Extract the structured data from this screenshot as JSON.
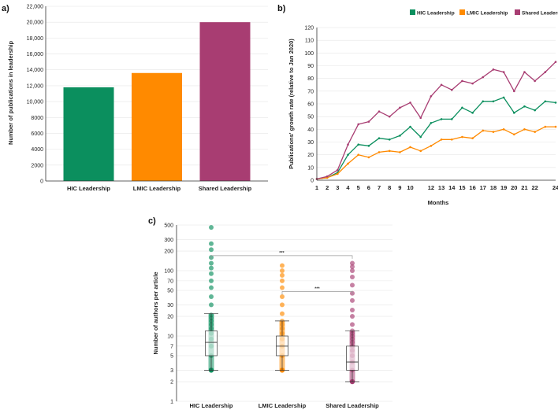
{
  "colors": {
    "hic": "#0b8f5e",
    "lmic": "#ff8a00",
    "shared": "#a83d72"
  },
  "chart_data": [
    {
      "panel": "a)",
      "type": "bar",
      "categories": [
        "HIC Leadership",
        "LMIC Leadership",
        "Shared Leadership"
      ],
      "values": [
        11800,
        13600,
        20000
      ],
      "xlabel": "",
      "ylabel": "Number of publications in leadership",
      "ylim": [
        0,
        22000
      ],
      "yticks": [
        0,
        2000,
        4000,
        6000,
        8000,
        10000,
        12000,
        14000,
        16000,
        18000,
        20000,
        22000
      ],
      "ytick_labels": [
        "0",
        "2000",
        "4000",
        "6000",
        "8000",
        "10,000",
        "12,000",
        "14,000",
        "16,000",
        "18,000",
        "20,000",
        "22,000"
      ],
      "grid": true
    },
    {
      "panel": "b)",
      "type": "line",
      "title": "",
      "xlabel": "Months",
      "ylabel": "Publications' growth rate (relative to Jan 2020)",
      "ylim": [
        0,
        120
      ],
      "xlim": [
        1,
        24
      ],
      "xticks": [
        "1",
        "2",
        "3",
        "4",
        "5",
        "6",
        "7",
        "8",
        "9",
        "10",
        "12",
        "13",
        "14",
        "15",
        "16",
        "17",
        "18",
        "19",
        "20",
        "21",
        "22",
        "24"
      ],
      "yticks": [
        0,
        10,
        20,
        30,
        40,
        50,
        60,
        70,
        80,
        90,
        100,
        110,
        120
      ],
      "legend_position": "top-right",
      "x": [
        1,
        2,
        3,
        4,
        5,
        6,
        7,
        8,
        9,
        10,
        11,
        12,
        13,
        14,
        15,
        16,
        17,
        18,
        19,
        20,
        21,
        22,
        23,
        24
      ],
      "series": [
        {
          "name": "HIC Leadership",
          "key": "hic",
          "values": [
            1,
            2,
            6,
            20,
            28,
            27,
            33,
            32,
            35,
            42,
            34,
            45,
            48,
            48,
            57,
            53,
            62,
            62,
            65,
            53,
            58,
            55,
            62,
            61
          ]
        },
        {
          "name": "LMIC Leadership",
          "key": "lmic",
          "values": [
            1,
            2,
            5,
            13,
            20,
            18,
            22,
            23,
            22,
            26,
            23,
            27,
            32,
            32,
            34,
            33,
            39,
            38,
            40,
            36,
            40,
            38,
            42,
            42
          ]
        },
        {
          "name": "Shared Leadership",
          "key": "shared",
          "values": [
            1,
            3,
            8,
            28,
            44,
            46,
            54,
            50,
            57,
            61,
            49,
            66,
            75,
            71,
            78,
            76,
            81,
            87,
            85,
            70,
            85,
            78,
            85,
            93
          ]
        }
      ],
      "grid": true
    },
    {
      "panel": "c)",
      "type": "box",
      "categories": [
        "HIC Leadership",
        "LMIC Leadership",
        "Shared Leadership"
      ],
      "ylabel": "Number of authors per article",
      "yscale": "log",
      "ylim": [
        1,
        500
      ],
      "yticks": [
        1,
        2,
        3,
        5,
        7,
        10,
        20,
        30,
        50,
        70,
        100,
        200,
        300,
        500
      ],
      "boxes": [
        {
          "key": "hic",
          "q1": 5,
          "median": 8,
          "q3": 12,
          "whisker_low": 3,
          "whisker_high": 22,
          "outliers": [
            30,
            40,
            55,
            70,
            90,
            110,
            130,
            160,
            210,
            260,
            460
          ]
        },
        {
          "key": "lmic",
          "q1": 5,
          "median": 7,
          "q3": 10,
          "whisker_low": 3,
          "whisker_high": 17,
          "outliers": [
            22,
            30,
            40,
            55,
            70,
            85,
            100,
            120
          ]
        },
        {
          "key": "shared",
          "q1": 3,
          "median": 4,
          "q3": 7,
          "whisker_low": 2,
          "whisker_high": 12,
          "outliers": [
            15,
            20,
            25,
            35,
            45,
            60,
            80,
            100,
            115,
            130
          ]
        }
      ],
      "significance": [
        {
          "from": "HIC Leadership",
          "to": "Shared Leadership",
          "label": "***",
          "at": 170
        },
        {
          "from": "LMIC Leadership",
          "to": "Shared Leadership",
          "label": "***",
          "at": 48
        }
      ]
    }
  ]
}
